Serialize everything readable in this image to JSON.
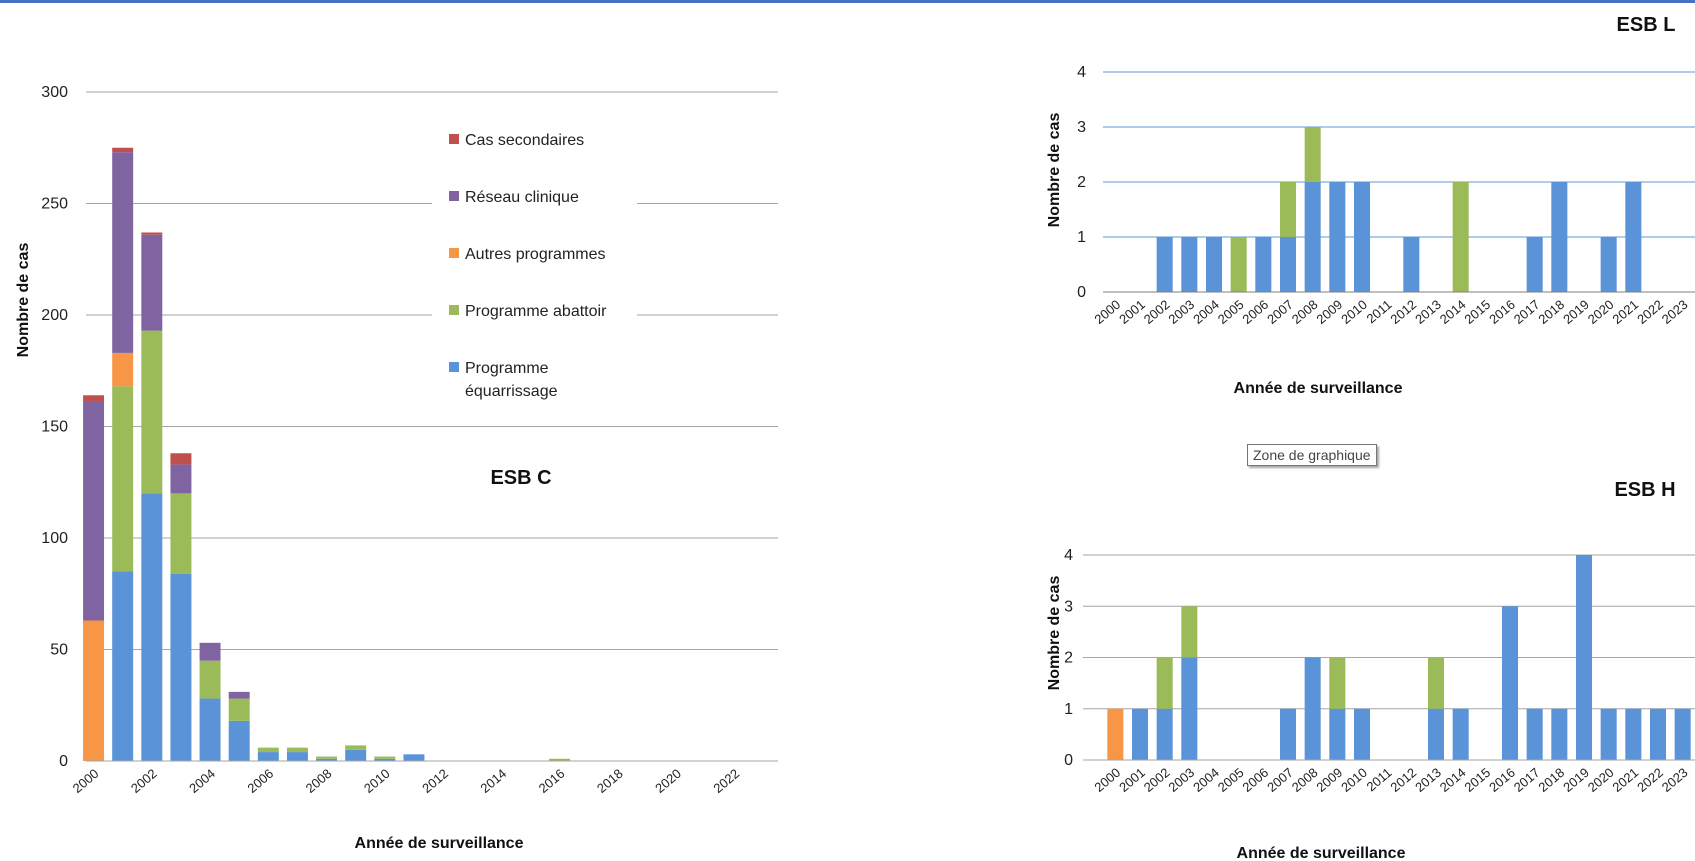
{
  "tooltip": "Zone de graphique",
  "colors": {
    "equarrissage": "#5B93D8",
    "abattoir": "#9BBB59",
    "autres": "#F79646",
    "reseau": "#8064A2",
    "secondaires": "#C0504D",
    "grid_main": "#A6A6A6",
    "grid_small": "#5B9BD5",
    "topstrip": "#4472C4"
  },
  "chart_data": [
    {
      "type": "bar",
      "stacked": true,
      "title": "ESB C",
      "xlabel": "Année de surveillance",
      "ylabel": "Nombre de cas",
      "ylim": [
        0,
        300
      ],
      "yticks": [
        0,
        50,
        100,
        150,
        200,
        250,
        300
      ],
      "xtick_labels": [
        "2000",
        "2002",
        "2004",
        "2006",
        "2008",
        "2010",
        "2012",
        "2014",
        "2016",
        "2018",
        "2020",
        "2022"
      ],
      "legend_position": "upper-center",
      "legend": [
        "Cas secondaires",
        "Réseau clinique",
        "Autres programmes",
        "Programme abattoir",
        "Programme équarrissage"
      ],
      "categories": [
        "2000",
        "2001",
        "2002",
        "2003",
        "2004",
        "2005",
        "2006",
        "2007",
        "2008",
        "2009",
        "2010",
        "2011",
        "2012",
        "2013",
        "2014",
        "2015",
        "2016",
        "2017",
        "2018",
        "2019",
        "2020",
        "2021",
        "2022",
        "2023"
      ],
      "series": [
        {
          "name": "Programme équarrissage",
          "color": "equarrissage",
          "values": [
            0,
            85,
            120,
            84,
            28,
            18,
            4,
            4,
            1,
            5,
            1,
            3,
            0,
            0,
            0,
            0,
            0,
            0,
            0,
            0,
            0,
            0,
            0,
            0
          ]
        },
        {
          "name": "Programme abattoir",
          "color": "abattoir",
          "values": [
            0,
            83,
            73,
            36,
            17,
            10,
            2,
            2,
            1,
            2,
            1,
            0,
            0,
            0,
            0,
            0,
            1,
            0,
            0,
            0,
            0,
            0,
            0,
            0
          ]
        },
        {
          "name": "Autres programmes",
          "color": "autres",
          "values": [
            63,
            15,
            0,
            0,
            0,
            0,
            0,
            0,
            0,
            0,
            0,
            0,
            0,
            0,
            0,
            0,
            0,
            0,
            0,
            0,
            0,
            0,
            0,
            0
          ]
        },
        {
          "name": "Réseau clinique",
          "color": "reseau",
          "values": [
            98,
            90,
            43,
            13,
            8,
            3,
            0,
            0,
            0,
            0,
            0,
            0,
            0,
            0,
            0,
            0,
            0,
            0,
            0,
            0,
            0,
            0,
            0,
            0
          ]
        },
        {
          "name": "Cas secondaires",
          "color": "secondaires",
          "values": [
            3,
            2,
            1,
            5,
            0,
            0,
            0,
            0,
            0,
            0,
            0,
            0,
            0,
            0,
            0,
            0,
            0,
            0,
            0,
            0,
            0,
            0,
            0,
            0
          ]
        }
      ]
    },
    {
      "type": "bar",
      "stacked": true,
      "title": "ESB L",
      "xlabel": "Année de surveillance",
      "ylabel": "Nombre de cas",
      "ylim": [
        0,
        4
      ],
      "yticks": [
        0,
        1,
        2,
        3,
        4
      ],
      "categories": [
        "2000",
        "2001",
        "2002",
        "2003",
        "2004",
        "2005",
        "2006",
        "2007",
        "2008",
        "2009",
        "2010",
        "2011",
        "2012",
        "2013",
        "2014",
        "2015",
        "2016",
        "2017",
        "2018",
        "2019",
        "2020",
        "2021",
        "2022",
        "2023"
      ],
      "series": [
        {
          "color": "equarrissage",
          "values": [
            0,
            0,
            1,
            1,
            1,
            0,
            1,
            1,
            2,
            2,
            2,
            0,
            1,
            0,
            0,
            0,
            0,
            1,
            2,
            0,
            1,
            2,
            0,
            0
          ]
        },
        {
          "color": "abattoir",
          "values": [
            0,
            0,
            0,
            0,
            0,
            1,
            0,
            1,
            1,
            0,
            0,
            0,
            0,
            0,
            2,
            0,
            0,
            0,
            0,
            0,
            0,
            0,
            0,
            0
          ]
        }
      ]
    },
    {
      "type": "bar",
      "stacked": true,
      "title": "ESB H",
      "xlabel": "Année de surveillance",
      "ylabel": "Nombre de cas",
      "ylim": [
        0,
        4
      ],
      "yticks": [
        0,
        1,
        2,
        3,
        4
      ],
      "categories": [
        "2000",
        "2001",
        "2002",
        "2003",
        "2004",
        "2005",
        "2006",
        "2007",
        "2008",
        "2009",
        "2010",
        "2011",
        "2012",
        "2013",
        "2014",
        "2015",
        "2016",
        "2017",
        "2018",
        "2019",
        "2020",
        "2021",
        "2022",
        "2023"
      ],
      "series": [
        {
          "color": "equarrissage",
          "values": [
            0,
            1,
            1,
            2,
            0,
            0,
            0,
            1,
            2,
            1,
            1,
            0,
            0,
            1,
            1,
            0,
            3,
            1,
            1,
            4,
            1,
            1,
            1,
            1
          ]
        },
        {
          "color": "abattoir",
          "values": [
            0,
            0,
            1,
            1,
            0,
            0,
            0,
            0,
            0,
            1,
            0,
            0,
            0,
            1,
            0,
            0,
            0,
            0,
            0,
            0,
            0,
            0,
            0,
            0
          ]
        },
        {
          "color": "autres",
          "values": [
            1,
            0,
            0,
            0,
            0,
            0,
            0,
            0,
            0,
            0,
            0,
            0,
            0,
            0,
            0,
            0,
            0,
            0,
            0,
            0,
            0,
            0,
            0,
            0
          ]
        }
      ]
    }
  ]
}
